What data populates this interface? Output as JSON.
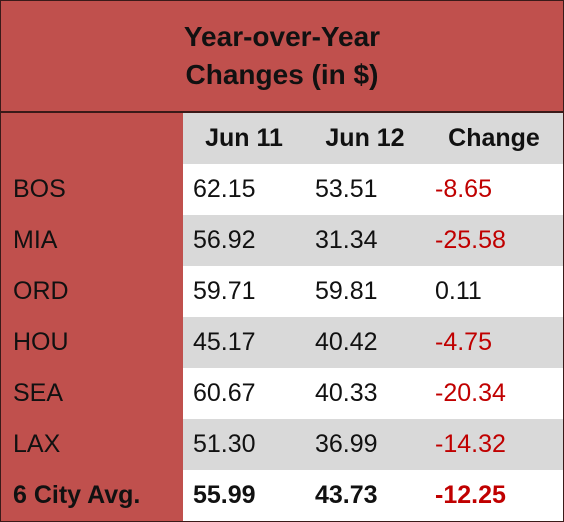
{
  "table": {
    "title": "Year-over-Year Changes (in $)",
    "header": [
      "Jun 11",
      "Jun 12",
      "Change"
    ],
    "rows": [
      [
        "BOS",
        "62.15",
        "53.51",
        "-8.65"
      ],
      [
        "MIA",
        "56.92",
        "31.34",
        "-25.58"
      ],
      [
        "ORD",
        "59.71",
        "59.81",
        "0.11"
      ],
      [
        "HOU",
        "45.17",
        "40.42",
        "-4.75"
      ],
      [
        "SEA",
        "60.67",
        "40.33",
        "-20.34"
      ],
      [
        "LAX",
        "51.30",
        "36.99",
        "-14.32"
      ]
    ],
    "total": [
      "6 City Avg.",
      "55.99",
      "43.73",
      "-12.25"
    ]
  }
}
